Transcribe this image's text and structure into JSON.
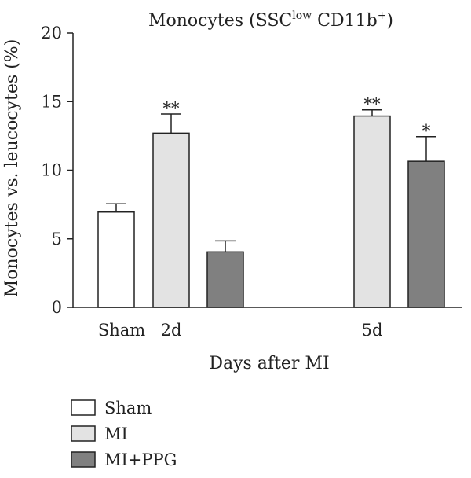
{
  "chart_data": {
    "type": "bar",
    "title": {
      "main": "Monocytes (SSC",
      "sup1": "low",
      "mid": " CD11b",
      "sup2": "+",
      "end": ")"
    },
    "xlabel": "Days after MI",
    "ylabel": "Monocytes vs. leucocytes (%)",
    "ylim": [
      0,
      20
    ],
    "yticks": [
      "0",
      "5",
      "10",
      "15",
      "20"
    ],
    "x_tick_labels": [
      "Sham",
      "2d",
      "5d"
    ],
    "series": [
      {
        "name": "Sham",
        "color": "#ffffff"
      },
      {
        "name": "MI",
        "color": "#e3e3e3"
      },
      {
        "name": "MI+PPG",
        "color": "#808080"
      }
    ],
    "bars": [
      {
        "series": "Sham",
        "group": "Sham",
        "value": 6.95,
        "error": 0.6,
        "significance": ""
      },
      {
        "series": "MI",
        "group": "2d",
        "value": 12.7,
        "error": 1.4,
        "significance": "**"
      },
      {
        "series": "MI+PPG",
        "group": "2d",
        "value": 4.05,
        "error": 0.8,
        "significance": ""
      },
      {
        "series": "MI",
        "group": "5d",
        "value": 13.95,
        "error": 0.45,
        "significance": "**"
      },
      {
        "series": "MI+PPG",
        "group": "5d",
        "value": 10.65,
        "error": 1.8,
        "significance": "*"
      }
    ],
    "legend_position": "bottom-left",
    "grid": false
  }
}
